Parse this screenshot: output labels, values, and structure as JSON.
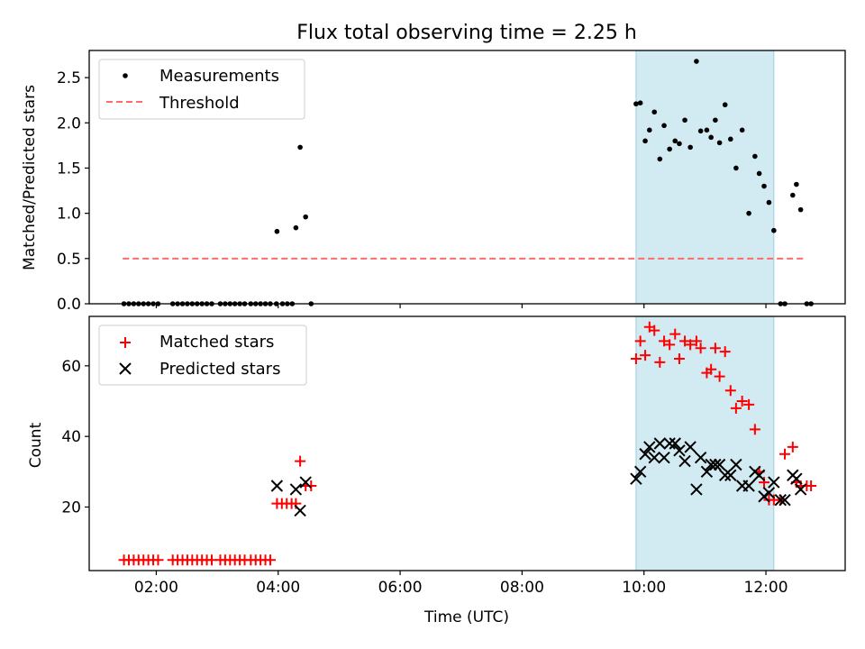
{
  "chart_data": [
    {
      "type": "scatter",
      "title": "Flux total observing time = 2.25 h",
      "xlabel": "",
      "ylabel": "Matched/Predicted stars",
      "xlim": [
        0.9,
        13.3
      ],
      "ylim": [
        0,
        2.8
      ],
      "yticks": [
        0.0,
        0.5,
        1.0,
        1.5,
        2.0,
        2.5
      ],
      "ytick_labels": [
        "0.0",
        "0.5",
        "1.0",
        "1.5",
        "2.0",
        "2.5"
      ],
      "xticks": [
        2,
        4,
        6,
        8,
        10,
        12
      ],
      "shaded_region": [
        9.87,
        12.13
      ],
      "shaded_color": "#add8e6",
      "threshold": {
        "name": "Threshold",
        "y": 0.5,
        "x_range": [
          1.45,
          12.65
        ],
        "color": "#ff6b6b"
      },
      "legend": [
        "Measurements",
        "Threshold"
      ],
      "legend_loc": "upper left",
      "series": [
        {
          "name": "Measurements",
          "marker": "dot",
          "color": "#000000",
          "x": [
            1.47,
            1.55,
            1.63,
            1.71,
            1.79,
            1.87,
            1.95,
            2.03,
            2.27,
            2.35,
            2.43,
            2.51,
            2.59,
            2.67,
            2.75,
            2.83,
            2.91,
            3.05,
            3.13,
            3.21,
            3.29,
            3.37,
            3.45,
            3.55,
            3.63,
            3.71,
            3.79,
            3.87,
            3.97,
            4.07,
            4.15,
            4.23,
            3.98,
            4.29,
            4.36,
            4.45,
            4.54,
            9.87,
            9.94,
            10.02,
            10.09,
            10.17,
            10.26,
            10.33,
            10.42,
            10.51,
            10.58,
            10.67,
            10.76,
            10.86,
            10.93,
            11.03,
            11.1,
            11.17,
            11.24,
            11.33,
            11.42,
            11.51,
            11.61,
            11.72,
            11.82,
            11.89,
            11.97,
            12.05,
            12.13,
            12.24,
            12.31,
            12.44,
            12.5,
            12.57,
            12.67,
            12.74
          ],
          "y": [
            0,
            0,
            0,
            0,
            0,
            0,
            0,
            0,
            0,
            0,
            0,
            0,
            0,
            0,
            0,
            0,
            0,
            0,
            0,
            0,
            0,
            0,
            0,
            0,
            0,
            0,
            0,
            0,
            0,
            0,
            0,
            0,
            0.8,
            0.84,
            1.73,
            0.96,
            0,
            2.21,
            2.22,
            1.8,
            1.92,
            2.12,
            1.6,
            1.97,
            1.71,
            1.8,
            1.77,
            2.03,
            1.73,
            2.68,
            1.91,
            1.92,
            1.84,
            2.03,
            1.78,
            2.2,
            1.82,
            1.5,
            1.92,
            1.0,
            1.63,
            1.44,
            1.3,
            1.12,
            0.81,
            0,
            0,
            1.2,
            1.32,
            1.04,
            0,
            0
          ]
        }
      ]
    },
    {
      "type": "scatter",
      "title": "",
      "xlabel": "Time (UTC)",
      "ylabel": "Count",
      "xlim": [
        0.9,
        13.3
      ],
      "ylim": [
        2,
        74
      ],
      "yticks": [
        20,
        40,
        60
      ],
      "ytick_labels": [
        "20",
        "40",
        "60"
      ],
      "xticks": [
        2,
        4,
        6,
        8,
        10,
        12
      ],
      "xtick_labels": [
        "02:00",
        "04:00",
        "06:00",
        "08:00",
        "10:00",
        "12:00"
      ],
      "shaded_region": [
        9.87,
        12.13
      ],
      "shaded_color": "#add8e6",
      "legend": [
        "Matched stars",
        "Predicted stars"
      ],
      "legend_loc": "upper left",
      "series": [
        {
          "name": "Matched stars",
          "marker": "plus",
          "color": "#ff0000",
          "x": [
            1.47,
            1.55,
            1.63,
            1.71,
            1.79,
            1.87,
            1.95,
            2.03,
            2.27,
            2.35,
            2.43,
            2.51,
            2.59,
            2.67,
            2.75,
            2.83,
            2.91,
            3.05,
            3.13,
            3.21,
            3.29,
            3.37,
            3.45,
            3.55,
            3.63,
            3.71,
            3.79,
            3.87,
            3.98,
            4.06,
            4.14,
            4.22,
            4.29,
            4.36,
            4.45,
            4.54,
            9.87,
            9.94,
            10.02,
            10.09,
            10.17,
            10.26,
            10.33,
            10.42,
            10.51,
            10.58,
            10.67,
            10.76,
            10.86,
            10.93,
            11.03,
            11.1,
            11.17,
            11.24,
            11.33,
            11.42,
            11.51,
            11.61,
            11.72,
            11.82,
            11.89,
            11.97,
            12.05,
            12.13,
            12.24,
            12.31,
            12.44,
            12.5,
            12.57,
            12.67,
            12.74
          ],
          "y": [
            5,
            5,
            5,
            5,
            5,
            5,
            5,
            5,
            5,
            5,
            5,
            5,
            5,
            5,
            5,
            5,
            5,
            5,
            5,
            5,
            5,
            5,
            5,
            5,
            5,
            5,
            5,
            5,
            21,
            21,
            21,
            21,
            21,
            33,
            26,
            26,
            62,
            67,
            63,
            71,
            70,
            61,
            67,
            66,
            69,
            62,
            67,
            66,
            67,
            65,
            58,
            59,
            65,
            57,
            64,
            53,
            48,
            50,
            49,
            42,
            30,
            27,
            22,
            22,
            22,
            35,
            37,
            27,
            26,
            26,
            26
          ]
        },
        {
          "name": "Predicted stars",
          "marker": "x",
          "color": "#000000",
          "x": [
            3.98,
            4.29,
            4.36,
            4.45,
            9.87,
            9.94,
            10.02,
            10.09,
            10.17,
            10.26,
            10.33,
            10.42,
            10.51,
            10.58,
            10.67,
            10.76,
            10.86,
            10.93,
            11.03,
            11.1,
            11.17,
            11.24,
            11.33,
            11.42,
            11.51,
            11.61,
            11.72,
            11.82,
            11.89,
            11.97,
            12.05,
            12.13,
            12.24,
            12.31,
            12.44,
            12.5,
            12.57
          ],
          "y": [
            26,
            25,
            19,
            27,
            28,
            30,
            35,
            37,
            34,
            38,
            34,
            38,
            38,
            36,
            33,
            37,
            25,
            34,
            30,
            32,
            32,
            32,
            29,
            29,
            32,
            26,
            26,
            30,
            29,
            23,
            24,
            27,
            22,
            22,
            29,
            28,
            25
          ]
        }
      ]
    }
  ]
}
